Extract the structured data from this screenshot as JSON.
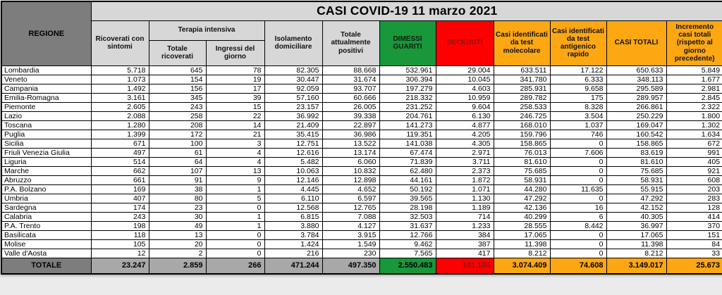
{
  "chart_data": {
    "type": "table",
    "title": "CASI COVID-19 11 marzo 2021",
    "corner_label": "REGIONE",
    "group_header": "Terapia intensiva",
    "columns": [
      "Ricoverati con sintomi",
      "Totale ricoverati",
      "Ingressi del giorno",
      "Isolamento domiciliare",
      "Totale attualmente positivi",
      "DIMESSI GUARITI",
      "DECEDUTI",
      "Casi identificati da test molecolare",
      "Casi identificati da test antigenico rapido",
      "CASI TOTALI",
      "Incremento casi totali (rispetto al giorno precedente)"
    ],
    "rows": [
      [
        "Lombardia",
        "5.718",
        "645",
        "78",
        "82.305",
        "88.668",
        "532.961",
        "29.004",
        "633.511",
        "17.122",
        "650.633",
        "5.849"
      ],
      [
        "Veneto",
        "1.073",
        "154",
        "19",
        "30.447",
        "31.674",
        "306.394",
        "10.045",
        "341.780",
        "6.333",
        "348.113",
        "1.677"
      ],
      [
        "Campania",
        "1.492",
        "156",
        "17",
        "92.059",
        "93.707",
        "197.279",
        "4.603",
        "285.931",
        "9.658",
        "295.589",
        "2.981"
      ],
      [
        "Emilia-Romagna",
        "3.161",
        "345",
        "39",
        "57.160",
        "60.666",
        "218.332",
        "10.959",
        "289.782",
        "175",
        "289.957",
        "2.845"
      ],
      [
        "Piemonte",
        "2.605",
        "243",
        "15",
        "23.157",
        "26.005",
        "231.252",
        "9.604",
        "258.533",
        "8.328",
        "266.861",
        "2.322"
      ],
      [
        "Lazio",
        "2.088",
        "258",
        "22",
        "36.992",
        "39.338",
        "204.761",
        "6.130",
        "246.725",
        "3.504",
        "250.229",
        "1.800"
      ],
      [
        "Toscana",
        "1.280",
        "208",
        "14",
        "21.409",
        "22.897",
        "141.273",
        "4.877",
        "168.010",
        "1.037",
        "169.047",
        "1.302"
      ],
      [
        "Puglia",
        "1.399",
        "172",
        "21",
        "35.415",
        "36.986",
        "119.351",
        "4.205",
        "159.796",
        "746",
        "160.542",
        "1.634"
      ],
      [
        "Sicilia",
        "671",
        "100",
        "3",
        "12.751",
        "13.522",
        "141.038",
        "4.305",
        "158.865",
        "0",
        "158.865",
        "672"
      ],
      [
        "Friuli Venezia Giulia",
        "497",
        "61",
        "4",
        "12.616",
        "13.174",
        "67.474",
        "2.971",
        "76.013",
        "7.606",
        "83.619",
        "991"
      ],
      [
        "Liguria",
        "514",
        "64",
        "4",
        "5.482",
        "6.060",
        "71.839",
        "3.711",
        "81.610",
        "0",
        "81.610",
        "405"
      ],
      [
        "Marche",
        "662",
        "107",
        "13",
        "10.063",
        "10.832",
        "62.480",
        "2.373",
        "75.685",
        "0",
        "75.685",
        "921"
      ],
      [
        "Abruzzo",
        "661",
        "91",
        "9",
        "12.146",
        "12.898",
        "44.161",
        "1.872",
        "58.931",
        "0",
        "58.931",
        "608"
      ],
      [
        "P.A. Bolzano",
        "169",
        "38",
        "1",
        "4.445",
        "4.652",
        "50.192",
        "1.071",
        "44.280",
        "11.635",
        "55.915",
        "203"
      ],
      [
        "Umbria",
        "407",
        "80",
        "5",
        "6.110",
        "6.597",
        "39.565",
        "1.130",
        "47.292",
        "0",
        "47.292",
        "283"
      ],
      [
        "Sardegna",
        "174",
        "23",
        "0",
        "12.568",
        "12.765",
        "28.198",
        "1.189",
        "42.136",
        "16",
        "42.152",
        "128"
      ],
      [
        "Calabria",
        "243",
        "30",
        "1",
        "6.815",
        "7.088",
        "32.503",
        "714",
        "40.299",
        "6",
        "40.305",
        "414"
      ],
      [
        "P.A. Trento",
        "198",
        "49",
        "1",
        "3.880",
        "4.127",
        "31.637",
        "1.233",
        "28.555",
        "8.442",
        "36.997",
        "370"
      ],
      [
        "Basilicata",
        "118",
        "13",
        "0",
        "3.784",
        "3.915",
        "12.766",
        "384",
        "17.065",
        "0",
        "17.065",
        "151"
      ],
      [
        "Molise",
        "105",
        "20",
        "0",
        "1.424",
        "1.549",
        "9.462",
        "387",
        "11.398",
        "0",
        "11.398",
        "84"
      ],
      [
        "Valle d'Aosta",
        "12",
        "2",
        "0",
        "216",
        "230",
        "7.565",
        "417",
        "8.212",
        "0",
        "8.212",
        "33"
      ]
    ],
    "total_row": [
      "TOTALE",
      "23.247",
      "2.859",
      "266",
      "471.244",
      "497.350",
      "2.550.483",
      "101.184",
      "3.074.409",
      "74.608",
      "3.149.017",
      "25.673"
    ],
    "colors": {
      "header_gray": "#d7d7d7",
      "corner_dark_gray": "#7d7d7d",
      "total_gray": "#a8a8a8",
      "green": "#18973b",
      "red": "#fe0000",
      "orange": "#fda712",
      "deceduti_text": "#8e1414"
    }
  }
}
